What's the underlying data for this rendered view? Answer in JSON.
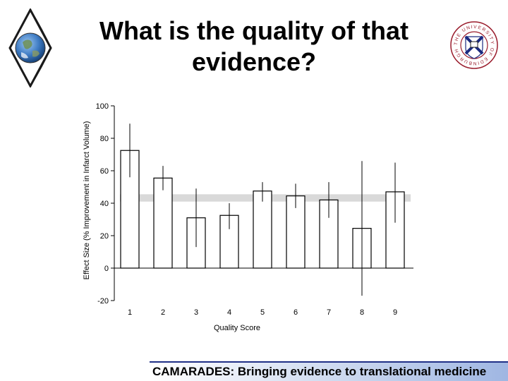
{
  "title": {
    "line1": "What is the quality of that",
    "line2": "evidence?"
  },
  "footer": {
    "text": "CAMARADES: Bringing evidence to translational medicine"
  },
  "logos": {
    "left": {
      "icon": "earth-globe-diamond-logo"
    },
    "right": {
      "icon": "university-crest-logo",
      "text": "THE UNIVERSITY OF EDINBURGH"
    }
  },
  "colors": {
    "band": "#d9d9d9",
    "bar_outline": "#000000",
    "footer_rule": "#1f2f86",
    "footer_gradient_end": "#9fb6e2"
  },
  "chart_data": {
    "type": "bar",
    "categories": [
      "1",
      "2",
      "3",
      "4",
      "5",
      "6",
      "7",
      "8",
      "9"
    ],
    "values": [
      72.5,
      55.5,
      31,
      32.5,
      47.5,
      44.5,
      42,
      24.5,
      47
    ],
    "error_low": [
      56,
      48,
      13,
      24,
      41,
      37,
      31,
      -17,
      28
    ],
    "error_high": [
      89,
      63,
      49,
      40,
      53,
      52,
      53,
      66,
      65
    ],
    "reference_band": [
      41,
      45.5
    ],
    "xlabel": "Quality Score",
    "ylabel": "Effect Size (% Improvement in Infarct Volume)",
    "ylim": [
      -20,
      100
    ],
    "yticks": [
      -20,
      0,
      20,
      40,
      60,
      80,
      100
    ],
    "grid": false
  }
}
